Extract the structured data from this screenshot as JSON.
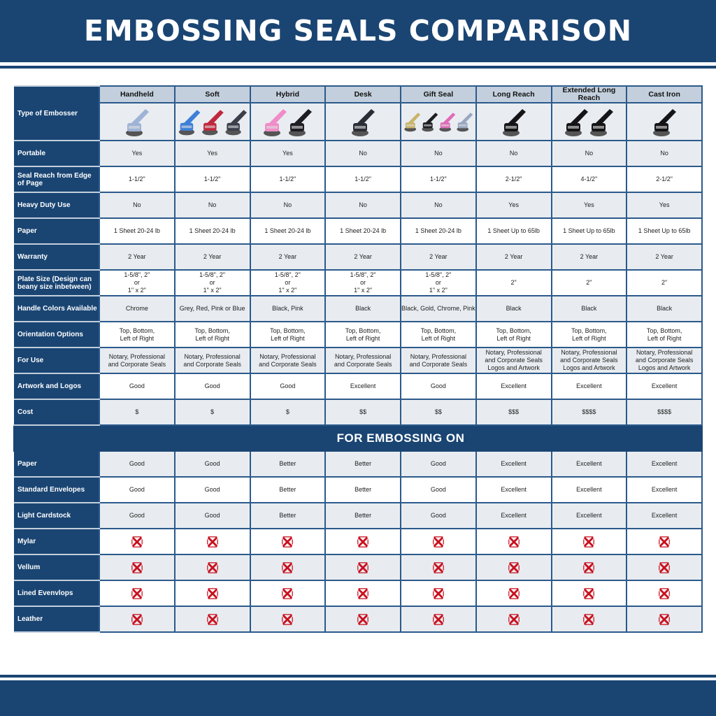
{
  "title": "EMBOSSING SEALS COMPARISON",
  "row_header_label": "Type of Embosser",
  "columns": [
    "Handheld",
    "Soft",
    "Hybrid",
    "Desk",
    "Gift Seal",
    "Long Reach",
    "Extended Long Reach",
    "Cast Iron"
  ],
  "product_images": [
    {
      "name": "handheld-embosser-image",
      "colors": [
        "#9fb3d6"
      ]
    },
    {
      "name": "soft-embosser-image",
      "colors": [
        "#3d7fd8",
        "#c0283c",
        "#3a3f4a"
      ]
    },
    {
      "name": "hybrid-embosser-image",
      "colors": [
        "#f08cc8",
        "#1d1d22"
      ]
    },
    {
      "name": "desk-embosser-image",
      "colors": [
        "#2a2d35"
      ]
    },
    {
      "name": "gift-seal-embosser-image",
      "colors": [
        "#c9b46a",
        "#1d1d22",
        "#e06cb8",
        "#9aa7c0"
      ]
    },
    {
      "name": "long-reach-embosser-image",
      "colors": [
        "#151518"
      ]
    },
    {
      "name": "extended-long-reach-embosser-image",
      "colors": [
        "#151518",
        "#151518"
      ]
    },
    {
      "name": "cast-iron-embosser-image",
      "colors": [
        "#151518"
      ]
    }
  ],
  "rows": [
    {
      "label": "Portable",
      "values": [
        "Yes",
        "Yes",
        "Yes",
        "No",
        "No",
        "No",
        "No",
        "No"
      ]
    },
    {
      "label": "Seal Reach from Edge of Page",
      "values": [
        "1-1/2\"",
        "1-1/2\"",
        "1-1/2\"",
        "1-1/2\"",
        "1-1/2\"",
        "2-1/2\"",
        "4-1/2\"",
        "2-1/2\""
      ]
    },
    {
      "label": "Heavy Duty Use",
      "values": [
        "No",
        "No",
        "No",
        "No",
        "No",
        "Yes",
        "Yes",
        "Yes"
      ]
    },
    {
      "label": "Paper",
      "values": [
        "1 Sheet 20-24 lb",
        "1 Sheet 20-24 lb",
        "1 Sheet 20-24 lb",
        "1 Sheet 20-24 lb",
        "1 Sheet 20-24 lb",
        "1 Sheet Up to 65lb",
        "1 Sheet Up to 65lb",
        "1 Sheet Up to 65lb"
      ]
    },
    {
      "label": "Warranty",
      "values": [
        "2 Year",
        "2 Year",
        "2 Year",
        "2 Year",
        "2 Year",
        "2 Year",
        "2 Year",
        "2 Year"
      ]
    },
    {
      "label": "Plate Size (Design can beany size inbetween)",
      "values": [
        "1-5/8\", 2\"\nor\n1\" x 2\"",
        "1-5/8\", 2\"\nor\n1\" x 2\"",
        "1-5/8\", 2\"\nor\n1\" x 2\"",
        "1-5/8\", 2\"\nor\n1\" x 2\"",
        "1-5/8\", 2\"\nor\n1\" x 2\"",
        "2\"",
        "2\"",
        "2\""
      ]
    },
    {
      "label": "Handle Colors Available",
      "values": [
        "Chrome",
        "Grey, Red, Pink or Blue",
        "Black, Pink",
        "Black",
        "Black, Gold, Chrome, Pink",
        "Black",
        "Black",
        "Black"
      ]
    },
    {
      "label": "Orientation Options",
      "values": [
        "Top, Bottom,\nLeft of Right",
        "Top, Bottom,\nLeft of Right",
        "Top, Bottom,\nLeft of Right",
        "Top, Bottom,\nLeft of Right",
        "Top, Bottom,\nLeft of Right",
        "Top, Bottom,\nLeft of Right",
        "Top, Bottom,\nLeft of Right",
        "Top, Bottom,\nLeft of Right"
      ]
    },
    {
      "label": "For Use",
      "values": [
        "Notary, Professional\nand Corporate Seals",
        "Notary, Professional\nand Corporate Seals",
        "Notary, Professional\nand Corporate Seals",
        "Notary, Professional\nand Corporate Seals",
        "Notary, Professional\nand Corporate Seals",
        "Notary, Professional\nand Corporate Seals\nLogos and Artwork",
        "Notary, Professional\nand Corporate Seals\nLogos and Artwork",
        "Notary, Professional\nand Corporate Seals\nLogos and Artwork"
      ]
    },
    {
      "label": "Artwork and Logos",
      "values": [
        "Good",
        "Good",
        "Good",
        "Excellent",
        "Good",
        "Excellent",
        "Excellent",
        "Excellent"
      ]
    },
    {
      "label": "Cost",
      "values": [
        "$",
        "$",
        "$",
        "$$",
        "$$",
        "$$$",
        "$$$$",
        "$$$$"
      ]
    }
  ],
  "section_title": "FOR EMBOSSING ON",
  "embossing_rows": [
    {
      "label": "Paper",
      "values": [
        "Good",
        "Good",
        "Better",
        "Better",
        "Good",
        "Excellent",
        "Excellent",
        "Excellent"
      ]
    },
    {
      "label": "Standard Envelopes",
      "values": [
        "Good",
        "Good",
        "Better",
        "Better",
        "Good",
        "Excellent",
        "Excellent",
        "Excellent"
      ]
    },
    {
      "label": "Light Cardstock",
      "values": [
        "Good",
        "Good",
        "Better",
        "Better",
        "Good",
        "Excellent",
        "Excellent",
        "Excellent"
      ]
    },
    {
      "label": "Mylar",
      "values": [
        "x-icon",
        "x-icon",
        "x-icon",
        "x-icon",
        "x-icon",
        "x-icon",
        "x-icon",
        "x-icon"
      ]
    },
    {
      "label": "Vellum",
      "values": [
        "x-icon",
        "x-icon",
        "x-icon",
        "x-icon",
        "x-icon",
        "x-icon",
        "x-icon",
        "x-icon"
      ]
    },
    {
      "label": "Lined Evenvlops",
      "values": [
        "x-icon",
        "x-icon",
        "x-icon",
        "x-icon",
        "x-icon",
        "x-icon",
        "x-icon",
        "x-icon"
      ]
    },
    {
      "label": "Leather",
      "values": [
        "x-icon",
        "x-icon",
        "x-icon",
        "x-icon",
        "x-icon",
        "x-icon",
        "x-icon",
        "x-icon"
      ]
    }
  ],
  "colors": {
    "navy": "#1a4573",
    "header_cell": "#c3cfdc",
    "alt_row": "#e8ecf0",
    "x_red": "#c8101e"
  }
}
